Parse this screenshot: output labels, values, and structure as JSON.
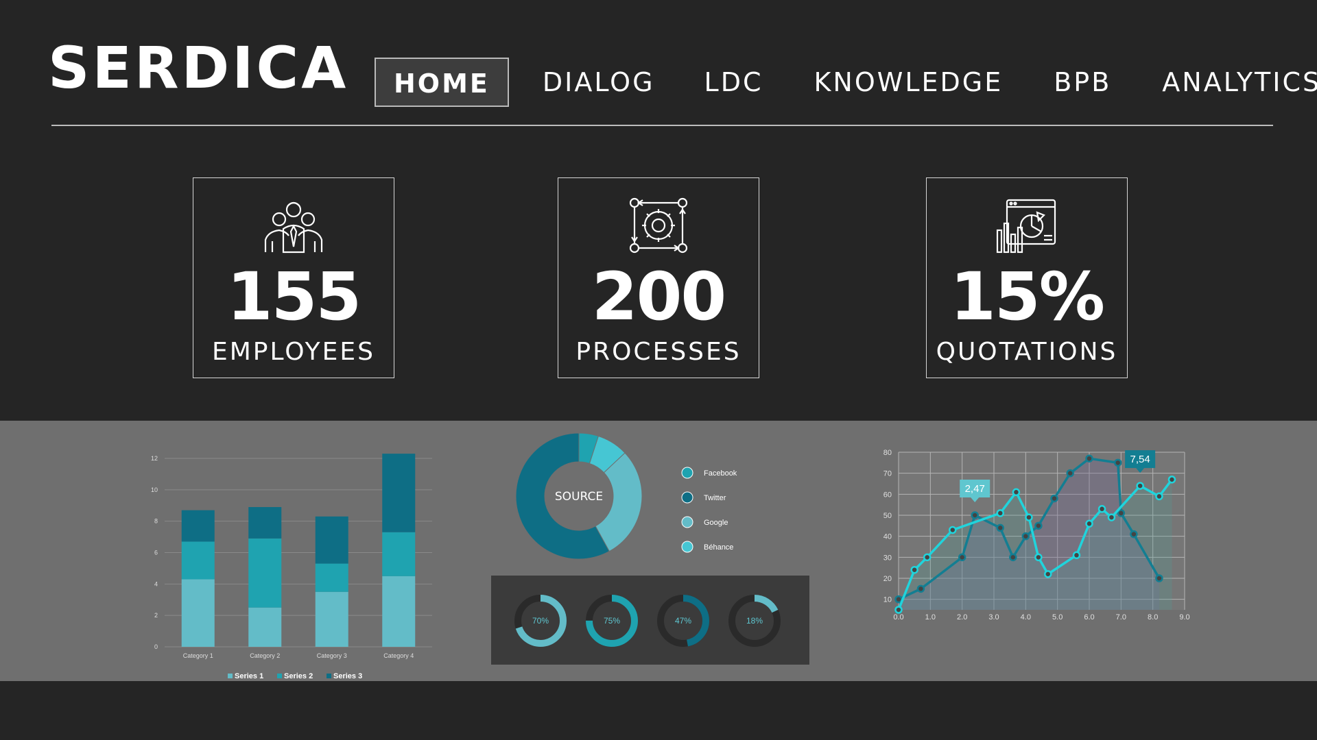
{
  "app": {
    "logo": "SERDICA",
    "nav": [
      {
        "label": "HOME",
        "active": true
      },
      {
        "label": "DIALOG",
        "active": false
      },
      {
        "label": "LDC",
        "active": false
      },
      {
        "label": "KNOWLEDGE",
        "active": false
      },
      {
        "label": "BPB",
        "active": false
      },
      {
        "label": "ANALYTICS",
        "active": false
      }
    ]
  },
  "kpis": [
    {
      "icon": "team-icon",
      "value": "155",
      "label": "EMPLOYEES"
    },
    {
      "icon": "process-gear-icon",
      "value": "200",
      "label": "PROCESSES"
    },
    {
      "icon": "analytics-report-icon",
      "value": "15%",
      "label": "QUOTATIONS"
    }
  ],
  "colors": {
    "background": "#252525",
    "panel": "#6f6f6f",
    "series1": "#63bcc8",
    "series2": "#1fa3b0",
    "series3": "#0e6e85",
    "cyan": "#20d4dc"
  },
  "chart_data": [
    {
      "type": "bar",
      "stacked": true,
      "categories": [
        "Category 1",
        "Category 2",
        "Category 3",
        "Category 4"
      ],
      "series": [
        {
          "name": "Series 1",
          "values": [
            4.3,
            2.5,
            3.5,
            4.5
          ]
        },
        {
          "name": "Series 2",
          "values": [
            2.4,
            4.4,
            1.8,
            2.8
          ]
        },
        {
          "name": "Series 3",
          "values": [
            2.0,
            2.0,
            3.0,
            5.0
          ]
        }
      ],
      "yticks": [
        "0",
        "2",
        "4",
        "6",
        "8",
        "10",
        "12"
      ],
      "ylim": [
        0,
        12
      ],
      "grid": true,
      "legend": "bottom"
    },
    {
      "type": "pie",
      "center_label": "SOURCE",
      "labels": [
        "Facebook",
        "Twitter",
        "Google",
        "Béhance"
      ],
      "values": [
        5,
        58,
        29,
        8
      ],
      "legend": "right"
    },
    {
      "type": "pie",
      "gauges": [
        {
          "label": "70%",
          "value": 70
        },
        {
          "label": "75%",
          "value": 75
        },
        {
          "label": "47%",
          "value": 47
        },
        {
          "label": "18%",
          "value": 18
        }
      ]
    },
    {
      "type": "line",
      "xticks": [
        "0.0",
        "1.0",
        "2.0",
        "3.0",
        "4.0",
        "5.0",
        "6.0",
        "7.0",
        "8.0",
        "9.0"
      ],
      "yticks": [
        "10",
        "20",
        "30",
        "40",
        "50",
        "60",
        "70",
        "80"
      ],
      "xlim": [
        0,
        9
      ],
      "ylim": [
        5,
        80
      ],
      "grid": true,
      "series": [
        {
          "x": [
            0,
            0.7,
            2.0,
            2.4,
            3.2,
            3.6,
            4.0,
            4.4,
            4.9,
            5.4,
            6.0,
            6.9,
            7.0,
            7.4,
            8.2
          ],
          "y": [
            10,
            15,
            30,
            50,
            44,
            30,
            40,
            45,
            58,
            70,
            77,
            75,
            51,
            41,
            20
          ]
        },
        {
          "x": [
            0,
            0.5,
            0.9,
            1.7,
            3.2,
            3.7,
            4.1,
            4.4,
            4.7,
            5.6,
            6.0,
            6.4,
            6.7,
            7.6,
            8.2,
            8.6
          ],
          "y": [
            5,
            24,
            30,
            43,
            51,
            61,
            49,
            30,
            22,
            31,
            46,
            53,
            49,
            64,
            59,
            67
          ]
        }
      ],
      "annotations": [
        {
          "x": 2.4,
          "y": 50,
          "label": "2,47"
        },
        {
          "x": 7.6,
          "y": 64,
          "label": "7,54"
        }
      ]
    }
  ]
}
